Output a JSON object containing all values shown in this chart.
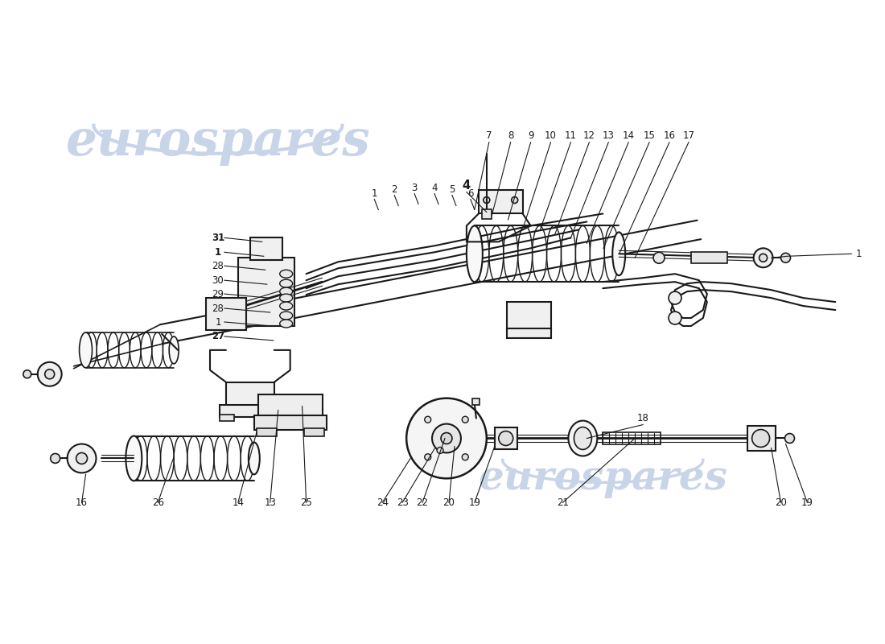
{
  "bg_color": "#ffffff",
  "line_color": "#1a1a1a",
  "watermark_color": "#c8d4e8",
  "fig_width": 11.0,
  "fig_height": 8.0,
  "dpi": 100,
  "label_fontsize": 8.5,
  "label_fontsize_bold": 9.5
}
